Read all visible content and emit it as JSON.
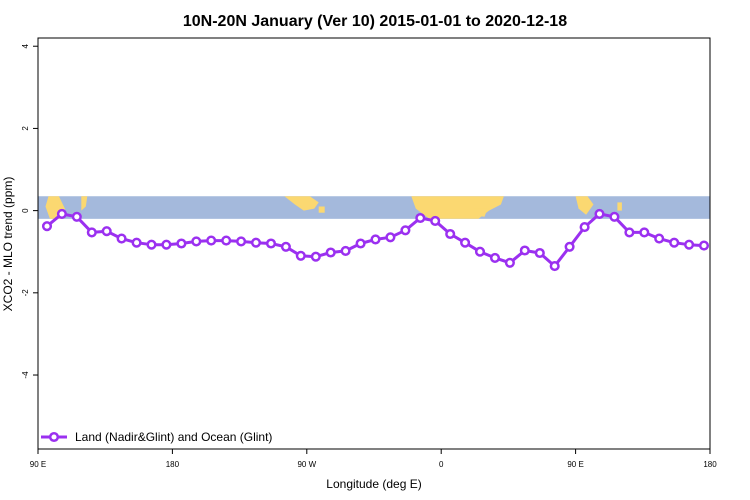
{
  "chart_data": {
    "type": "line",
    "title": "10N-20N January (Ver 10)   2015-01-01 to 2020-12-18",
    "xlabel": "Longitude (deg E)",
    "ylabel": "XCO2 - MLO trend (ppm)",
    "xlim": [
      90,
      540
    ],
    "ylim": [
      -5.8,
      4.2
    ],
    "x_ticks": [
      {
        "value": 90,
        "label": "90 E"
      },
      {
        "value": 180,
        "label": "180"
      },
      {
        "value": 270,
        "label": "90 W"
      },
      {
        "value": 360,
        "label": "0"
      },
      {
        "value": 450,
        "label": "90 E"
      },
      {
        "value": 540,
        "label": "180"
      }
    ],
    "y_ticks": [
      {
        "value": 4,
        "label": "4"
      },
      {
        "value": 2,
        "label": "2"
      },
      {
        "value": 0,
        "label": "0"
      },
      {
        "value": -2,
        "label": "-2"
      },
      {
        "value": -4,
        "label": "-4"
      }
    ],
    "grid": false,
    "legend_position": "bottom-left",
    "map_band": {
      "y_top": 0.35,
      "y_bottom": -0.2,
      "ocean_color": "#a4b9dc",
      "land_color": "#fbd871"
    },
    "series": [
      {
        "name": "Land (Nadir&Glint) and Ocean (Glint)",
        "color": "#9b30f0",
        "x": [
          96,
          106,
          116,
          126,
          136,
          146,
          156,
          166,
          176,
          186,
          196,
          206,
          216,
          226,
          236,
          246,
          256,
          266,
          276,
          286,
          296,
          306,
          316,
          326,
          336,
          346,
          356,
          366,
          376,
          386,
          396,
          406,
          416,
          426,
          436,
          446,
          456,
          466,
          476,
          486,
          496,
          506,
          516,
          526,
          536
        ],
        "y": [
          -0.38,
          -0.08,
          -0.15,
          -0.53,
          -0.5,
          -0.68,
          -0.78,
          -0.83,
          -0.83,
          -0.8,
          -0.75,
          -0.73,
          -0.73,
          -0.75,
          -0.78,
          -0.8,
          -0.88,
          -1.1,
          -1.12,
          -1.02,
          -0.98,
          -0.8,
          -0.7,
          -0.65,
          -0.48,
          -0.18,
          -0.25,
          -0.57,
          -0.78,
          -1.0,
          -1.15,
          -1.27,
          -0.97,
          -1.03,
          -1.35,
          -0.88,
          -0.4,
          -0.08,
          -0.15,
          -0.53,
          -0.53,
          -0.68,
          -0.78,
          -0.83,
          -0.85
        ]
      }
    ]
  }
}
